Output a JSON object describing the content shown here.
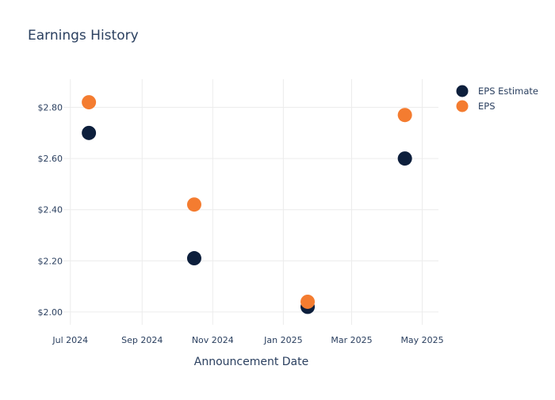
{
  "chart_data": {
    "type": "scatter",
    "title": "Earnings History",
    "xlabel": "Announcement Date",
    "ylabel": "",
    "x_type": "date",
    "xlim": [
      "2024-06-25",
      "2025-05-15"
    ],
    "ylim": [
      1.95,
      2.91
    ],
    "x_ticks": [
      {
        "date": "2024-07-01",
        "label": "Jul 2024"
      },
      {
        "date": "2024-09-01",
        "label": "Sep 2024"
      },
      {
        "date": "2024-11-01",
        "label": "Nov 2024"
      },
      {
        "date": "2025-01-01",
        "label": "Jan 2025"
      },
      {
        "date": "2025-03-01",
        "label": "Mar 2025"
      },
      {
        "date": "2025-05-01",
        "label": "May 2025"
      }
    ],
    "y_ticks": [
      {
        "value": 2.0,
        "label": "$2.00"
      },
      {
        "value": 2.2,
        "label": "$2.20"
      },
      {
        "value": 2.4,
        "label": "$2.40"
      },
      {
        "value": 2.6,
        "label": "$2.60"
      },
      {
        "value": 2.8,
        "label": "$2.80"
      }
    ],
    "grid": true,
    "legend_position": "top-right",
    "series": [
      {
        "name": "EPS Estimate",
        "color": "#0d1f3c",
        "points": [
          {
            "x": "2024-07-17",
            "y": 2.7
          },
          {
            "x": "2024-10-16",
            "y": 2.21
          },
          {
            "x": "2025-01-22",
            "y": 2.02
          },
          {
            "x": "2025-04-16",
            "y": 2.6
          }
        ]
      },
      {
        "name": "EPS",
        "color": "#f47c30",
        "points": [
          {
            "x": "2024-07-17",
            "y": 2.82
          },
          {
            "x": "2024-10-16",
            "y": 2.42
          },
          {
            "x": "2025-01-22",
            "y": 2.04
          },
          {
            "x": "2025-04-16",
            "y": 2.77
          }
        ]
      }
    ]
  }
}
